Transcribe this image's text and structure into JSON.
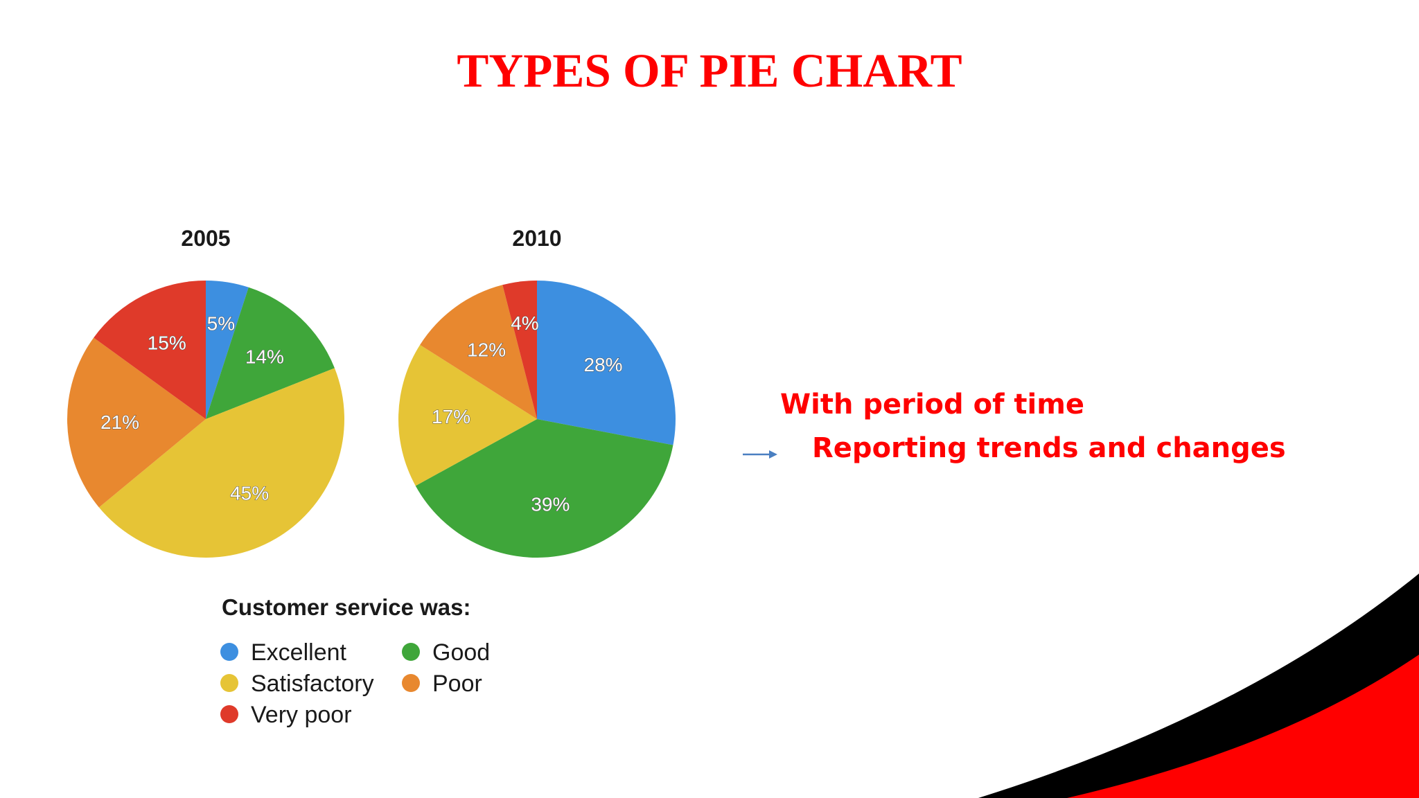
{
  "slide": {
    "title": "TYPES OF PIE CHART",
    "bullets": [
      "With period of time",
      "Reporting trends and changes"
    ]
  },
  "colors": {
    "title_red": "#ff0000",
    "Excellent": "#3d8fe0",
    "Good": "#3fa63a",
    "Satisfactory": "#e6c436",
    "Poor": "#e8882f",
    "Very poor": "#df3a2a"
  },
  "legend": {
    "title": "Customer service was:",
    "items": [
      "Excellent",
      "Good",
      "Satisfactory",
      "Poor",
      "Very poor"
    ]
  },
  "chart_data": [
    {
      "type": "pie",
      "title": "2005",
      "categories": [
        "Excellent",
        "Good",
        "Satisfactory",
        "Poor",
        "Very poor"
      ],
      "values": [
        5,
        14,
        45,
        21,
        15
      ],
      "labels": [
        "5%",
        "14%",
        "45%",
        "21%",
        "15%"
      ]
    },
    {
      "type": "pie",
      "title": "2010",
      "categories": [
        "Excellent",
        "Good",
        "Satisfactory",
        "Poor",
        "Very poor"
      ],
      "values": [
        28,
        39,
        17,
        12,
        4
      ],
      "labels": [
        "28%",
        "39%",
        "17%",
        "12%",
        "4%"
      ]
    }
  ]
}
